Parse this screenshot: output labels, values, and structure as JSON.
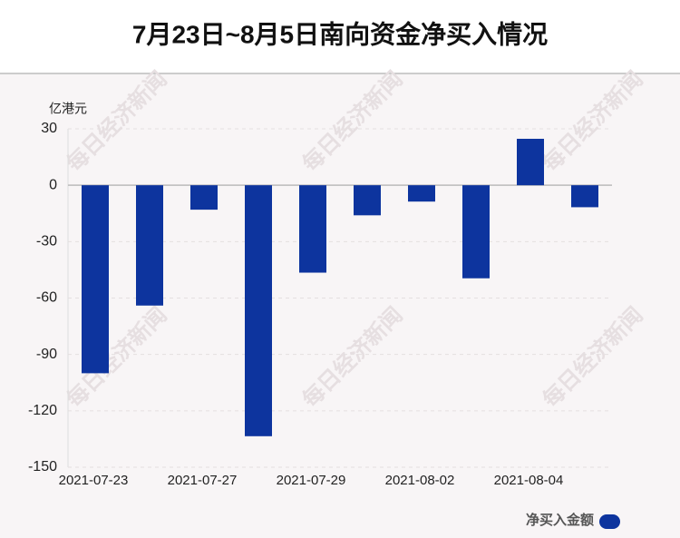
{
  "chart_data": {
    "type": "bar",
    "title": "7月23日~8月5日南向资金净买入情况",
    "y_label": "亿港元",
    "watermark": "每日经济新闻",
    "categories": [
      "2021-07-23",
      null,
      "2021-07-27",
      null,
      "2021-07-29",
      null,
      "2021-08-02",
      null,
      "2021-08-04",
      null
    ],
    "series": [
      {
        "name": "净买入金额",
        "color": "#0d349e",
        "values": [
          -100,
          -64,
          -13,
          -133.5,
          -46.5,
          -16,
          -8.7,
          -49.5,
          24.7,
          -11.7
        ]
      }
    ],
    "ylim": [
      -150,
      30
    ],
    "yticks": [
      30,
      0,
      -30,
      -60,
      -90,
      -120,
      -150
    ],
    "grid": true,
    "legend": "bottom-right"
  }
}
